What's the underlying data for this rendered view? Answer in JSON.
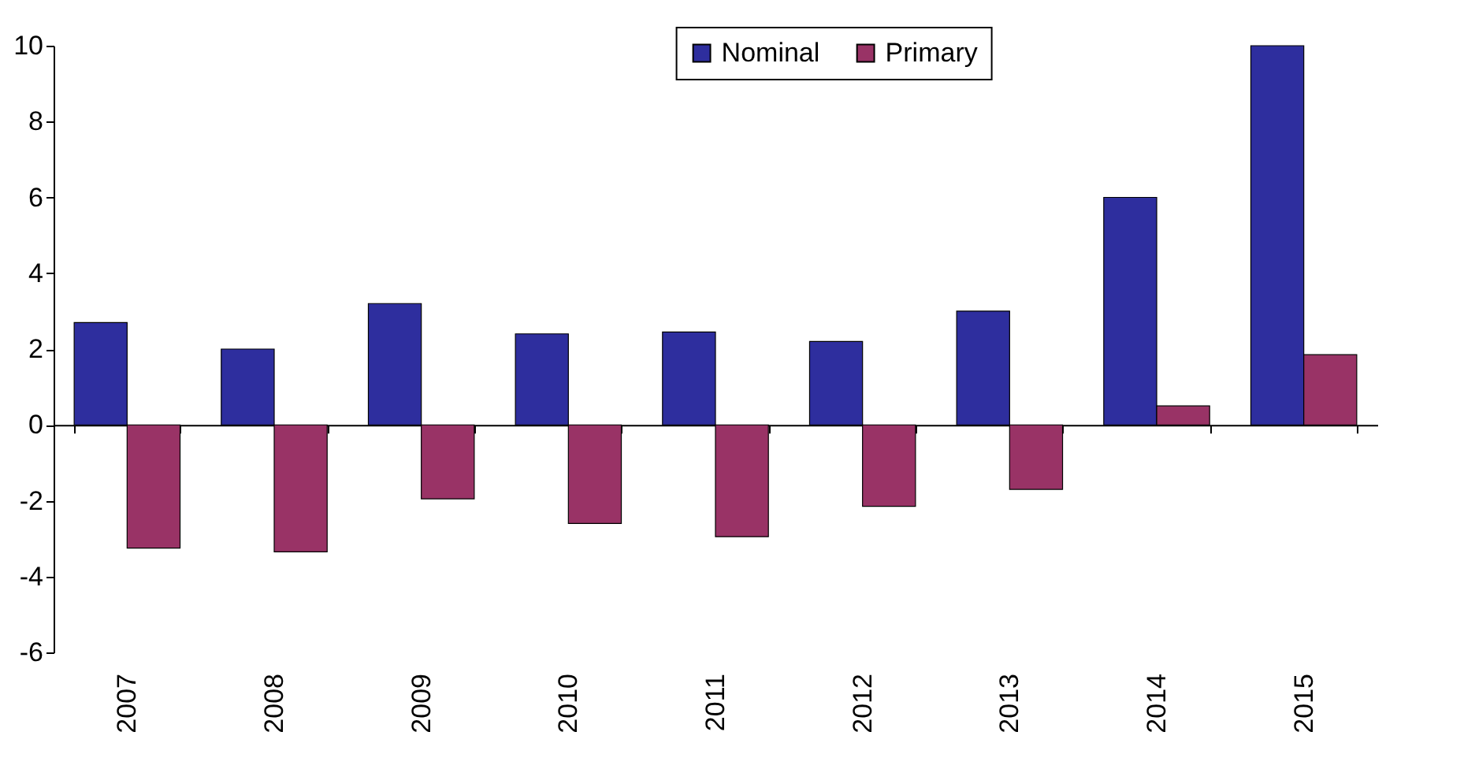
{
  "chart_data": {
    "type": "bar",
    "categories": [
      "2007",
      "2008",
      "2009",
      "2010",
      "2011",
      "2012",
      "2013",
      "2014",
      "2015"
    ],
    "series": [
      {
        "name": "Nominal",
        "color": "#2e2e9e",
        "values": [
          2.7,
          2.0,
          3.2,
          2.4,
          2.45,
          2.2,
          3.0,
          6.0,
          10.0
        ]
      },
      {
        "name": "Primary",
        "color": "#993366",
        "values": [
          -3.25,
          -3.35,
          -1.95,
          -2.6,
          -2.95,
          -2.15,
          -1.7,
          0.5,
          1.85
        ]
      }
    ],
    "ylim": [
      -6,
      10
    ],
    "yticks": [
      -6,
      -4,
      -2,
      0,
      2,
      4,
      6,
      8,
      10
    ],
    "legend": "top"
  }
}
